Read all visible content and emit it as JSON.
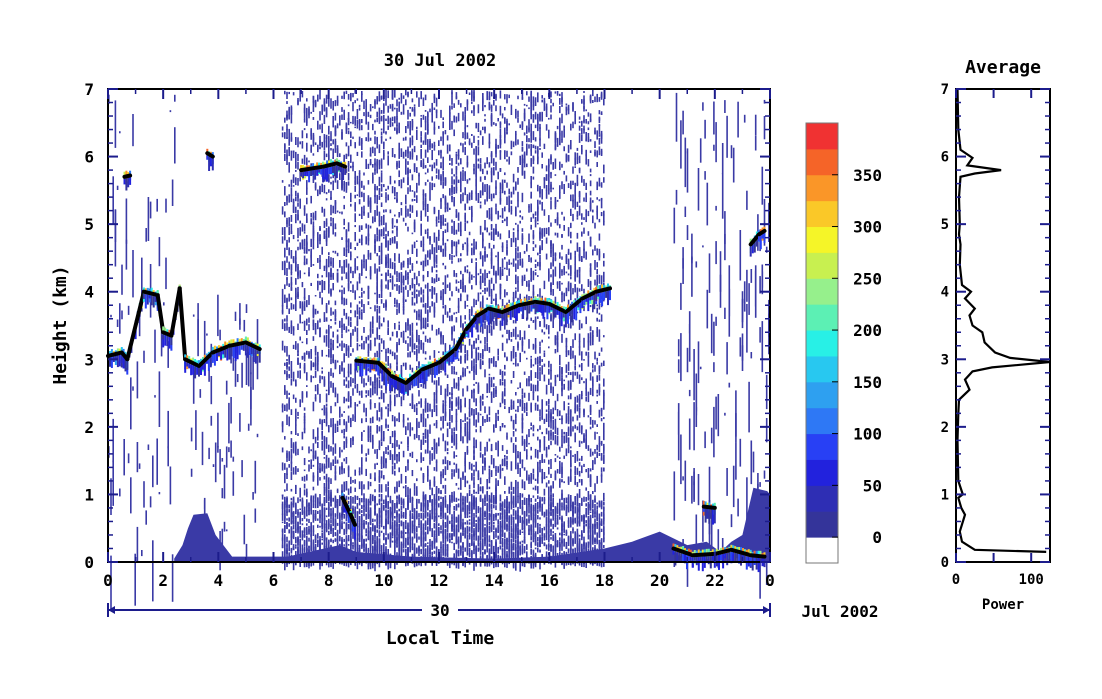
{
  "chart_data": [
    {
      "type": "heatmap",
      "title": "30 Jul 2002",
      "xlabel": "Local Time",
      "ylabel": "Height (km)",
      "xlim": [
        0,
        24
      ],
      "ylim": [
        0,
        7
      ],
      "x_ticks": [
        "0",
        "2",
        "4",
        "6",
        "8",
        "10",
        "12",
        "14",
        "16",
        "18",
        "20",
        "22",
        "0"
      ],
      "y_ticks": [
        "0",
        "1",
        "2",
        "3",
        "4",
        "5",
        "6",
        "7"
      ],
      "date_bar": {
        "day": "30",
        "month_year": "Jul 2002"
      },
      "colorbar": {
        "ticks": [
          "0",
          "50",
          "100",
          "150",
          "200",
          "250",
          "300",
          "350"
        ],
        "levels": [
          0,
          25,
          50,
          75,
          100,
          125,
          150,
          175,
          200,
          225,
          250,
          275,
          300,
          325,
          350,
          375
        ],
        "colors": [
          "#ffffff",
          "#34349a",
          "#2e2eb4",
          "#2222dd",
          "#2840f5",
          "#2e78f5",
          "#2ea0f0",
          "#28c8f0",
          "#28f0e6",
          "#5cf0b4",
          "#96f08c",
          "#c8f050",
          "#f5f528",
          "#fac828",
          "#fa9628",
          "#f56428",
          "#f03232"
        ]
      },
      "noise_color": "#3a3aa6",
      "layers": [
        {
          "name": "",
          "points": [
            [
              0.0,
              3.05
            ],
            [
              0.5,
              3.1
            ],
            [
              0.7,
              3.0
            ],
            [
              1.3,
              4.0
            ],
            [
              1.8,
              3.95
            ],
            [
              2.0,
              3.4
            ],
            [
              2.3,
              3.35
            ],
            [
              2.6,
              4.05
            ],
            [
              2.8,
              3.0
            ],
            [
              3.3,
              2.9
            ],
            [
              3.8,
              3.1
            ],
            [
              4.4,
              3.2
            ],
            [
              5.0,
              3.25
            ],
            [
              5.5,
              3.15
            ]
          ]
        },
        {
          "name": "",
          "points": [
            [
              3.6,
              6.05
            ],
            [
              3.8,
              6.0
            ]
          ]
        },
        {
          "name": "",
          "points": [
            [
              0.6,
              5.7
            ],
            [
              0.8,
              5.72
            ]
          ]
        },
        {
          "name": "",
          "points": [
            [
              7.0,
              5.8
            ],
            [
              7.8,
              5.85
            ],
            [
              8.3,
              5.9
            ],
            [
              8.6,
              5.85
            ]
          ]
        },
        {
          "name": "",
          "points": [
            [
              9.0,
              2.98
            ],
            [
              9.8,
              2.95
            ],
            [
              10.3,
              2.75
            ],
            [
              10.8,
              2.65
            ],
            [
              11.4,
              2.85
            ],
            [
              12.0,
              2.95
            ],
            [
              12.6,
              3.15
            ],
            [
              13.0,
              3.45
            ],
            [
              13.4,
              3.65
            ],
            [
              13.8,
              3.75
            ],
            [
              14.3,
              3.7
            ],
            [
              14.9,
              3.8
            ],
            [
              15.5,
              3.85
            ],
            [
              16.0,
              3.82
            ],
            [
              16.6,
              3.7
            ],
            [
              17.2,
              3.9
            ],
            [
              17.7,
              4.0
            ],
            [
              18.2,
              4.05
            ]
          ]
        },
        {
          "name": "",
          "points": [
            [
              23.3,
              4.7
            ],
            [
              23.6,
              4.85
            ],
            [
              23.8,
              4.9
            ]
          ]
        },
        {
          "name": "",
          "points": [
            [
              8.5,
              0.95
            ],
            [
              8.8,
              0.7
            ],
            [
              8.95,
              0.55
            ]
          ]
        },
        {
          "name": "",
          "points": [
            [
              21.6,
              0.82
            ],
            [
              22.0,
              0.8
            ]
          ]
        },
        {
          "name": "",
          "points": [
            [
              20.5,
              0.2
            ],
            [
              21.2,
              0.1
            ],
            [
              22.0,
              0.12
            ],
            [
              22.6,
              0.18
            ],
            [
              23.3,
              0.1
            ],
            [
              23.8,
              0.08
            ]
          ]
        }
      ],
      "ground_clutter": [
        [
          2.4,
          0.05
        ],
        [
          2.7,
          0.25
        ],
        [
          2.9,
          0.5
        ],
        [
          3.1,
          0.7
        ],
        [
          3.6,
          0.72
        ],
        [
          3.9,
          0.4
        ],
        [
          4.5,
          0.08
        ],
        [
          6.5,
          0.08
        ],
        [
          8.4,
          0.25
        ],
        [
          9.0,
          0.15
        ],
        [
          11.0,
          0.08
        ],
        [
          14.0,
          0.05
        ],
        [
          16.0,
          0.08
        ],
        [
          18.0,
          0.2
        ],
        [
          19.0,
          0.3
        ],
        [
          20.0,
          0.45
        ],
        [
          20.5,
          0.35
        ],
        [
          21.0,
          0.25
        ],
        [
          21.7,
          0.3
        ],
        [
          22.2,
          0.15
        ],
        [
          22.6,
          0.3
        ],
        [
          23.0,
          0.4
        ],
        [
          23.4,
          1.1
        ],
        [
          23.9,
          1.05
        ],
        [
          24.0,
          1.0
        ]
      ]
    },
    {
      "type": "line",
      "title": "Average",
      "xlabel": "Power",
      "ylabel": "",
      "xlim": [
        0,
        125
      ],
      "ylim": [
        0,
        7
      ],
      "x_ticks": [
        "0",
        "100"
      ],
      "y_ticks": [
        "0",
        "1",
        "2",
        "3",
        "4",
        "5",
        "6",
        "7"
      ],
      "series": [
        {
          "values": [
            [
              120,
              0.15
            ],
            [
              25,
              0.18
            ],
            [
              8,
              0.3
            ],
            [
              5,
              0.45
            ],
            [
              12,
              0.7
            ],
            [
              7,
              0.8
            ],
            [
              3,
              0.95
            ],
            [
              9,
              1.0
            ],
            [
              3,
              1.2
            ],
            [
              2,
              1.8
            ],
            [
              3,
              2.2
            ],
            [
              4,
              2.4
            ],
            [
              18,
              2.55
            ],
            [
              12,
              2.7
            ],
            [
              22,
              2.82
            ],
            [
              48,
              2.88
            ],
            [
              125,
              2.96
            ],
            [
              72,
              3.02
            ],
            [
              52,
              3.1
            ],
            [
              38,
              3.25
            ],
            [
              35,
              3.4
            ],
            [
              22,
              3.5
            ],
            [
              18,
              3.65
            ],
            [
              25,
              3.75
            ],
            [
              12,
              3.9
            ],
            [
              20,
              4.0
            ],
            [
              8,
              4.1
            ],
            [
              5,
              4.4
            ],
            [
              6,
              4.7
            ],
            [
              4,
              4.85
            ],
            [
              5,
              5.0
            ],
            [
              4,
              5.4
            ],
            [
              6,
              5.7
            ],
            [
              25,
              5.75
            ],
            [
              60,
              5.8
            ],
            [
              15,
              5.87
            ],
            [
              22,
              5.98
            ],
            [
              6,
              6.1
            ],
            [
              3,
              6.4
            ],
            [
              2,
              7.0
            ]
          ]
        }
      ]
    }
  ]
}
